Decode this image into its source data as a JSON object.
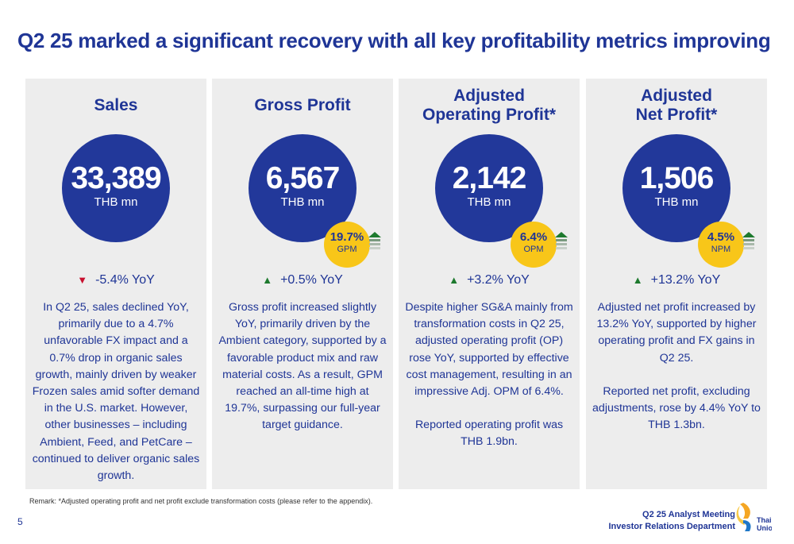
{
  "title": "Q2 25 marked a significant recovery with all key profitability metrics improving",
  "cards": [
    {
      "title": "Sales",
      "value": "33,389",
      "unit": "THB mn",
      "yoy": "-5.4% YoY",
      "yoy_direction": "down",
      "paragraphs": [
        "In Q2 25, sales declined YoY, primarily due to a 4.7% unfavorable FX impact and a 0.7% drop in organic sales growth, mainly driven by weaker Frozen sales amid softer demand in the U.S. market. However, other businesses – including Ambient, Feed, and PetCare – continued to deliver organic sales growth."
      ]
    },
    {
      "title": "Gross Profit",
      "value": "6,567",
      "unit": "THB mn",
      "badge_value": "19.7%",
      "badge_label": "GPM",
      "yoy": "+0.5% YoY",
      "yoy_direction": "up",
      "paragraphs": [
        "Gross profit increased slightly YoY, primarily driven by the Ambient category, supported by a favorable product mix and raw material costs. As a result, GPM reached an all-time high at 19.7%, surpassing our full-year target guidance."
      ]
    },
    {
      "title_line1": "Adjusted",
      "title_line2": "Operating Profit*",
      "value": "2,142",
      "unit": "THB mn",
      "badge_value": "6.4%",
      "badge_label": "OPM",
      "yoy": "+3.2% YoY",
      "yoy_direction": "up",
      "paragraphs": [
        "Despite higher SG&A mainly from transformation costs in Q2 25, adjusted operating profit (OP) rose YoY, supported by effective cost management, resulting in an impressive Adj. OPM of 6.4%.",
        "Reported operating profit was THB 1.9bn."
      ]
    },
    {
      "title_line1": "Adjusted",
      "title_line2": "Net Profit*",
      "value": "1,506",
      "unit": "THB mn",
      "badge_value": "4.5%",
      "badge_label": "NPM",
      "yoy": "+13.2% YoY",
      "yoy_direction": "up",
      "paragraphs": [
        "Adjusted net profit increased by 13.2% YoY, supported by higher operating profit and FX gains in Q2 25.",
        "Reported net profit, excluding adjustments, rose by 4.4% YoY to THB 1.3bn."
      ]
    }
  ],
  "remark": "Remark: *Adjusted operating profit and net profit exclude transformation costs (please refer to the appendix).",
  "page_number": "5",
  "footer": {
    "line1": "Q2 25 Analyst Meeting",
    "line2": "Investor Relations Department"
  },
  "logo": {
    "text_line1": "Thai",
    "text_line2": "Union"
  },
  "colors": {
    "primary": "#22389a",
    "accent": "#f8c619",
    "up": "#1e7a2e",
    "down": "#c8102e",
    "card_bg": "#ededed"
  },
  "icons": {
    "badge_trend": "stacked-up-arrow-icon",
    "yoy_up": "triangle-up-icon",
    "yoy_down": "triangle-down-icon"
  }
}
